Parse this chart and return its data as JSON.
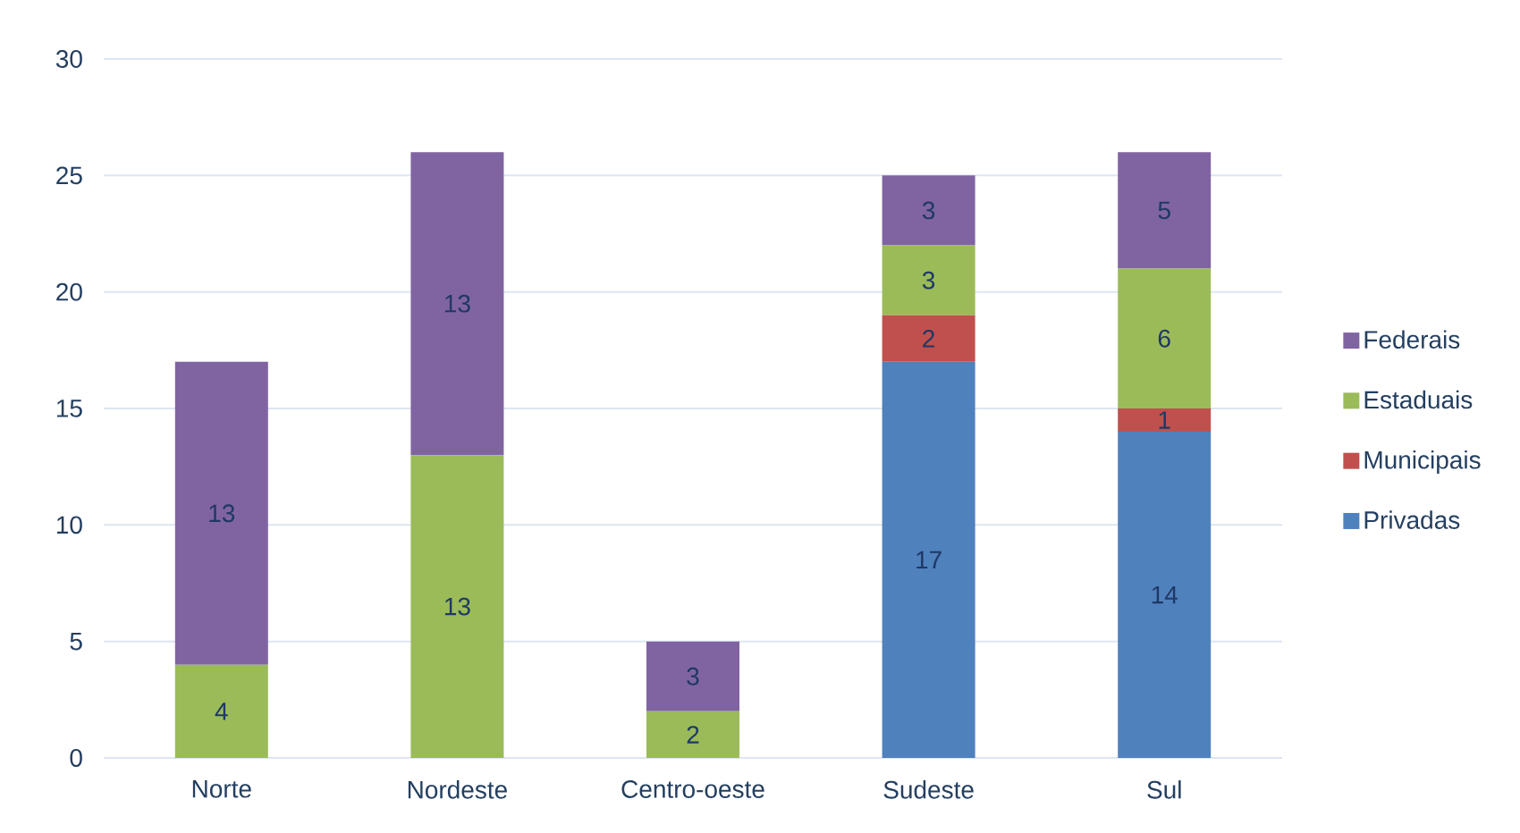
{
  "chart_data": {
    "type": "bar",
    "stacked": true,
    "categories": [
      "Norte",
      "Nordeste",
      "Centro-oeste",
      "Sudeste",
      "Sul"
    ],
    "series": [
      {
        "name": "Privadas",
        "color": "#4f81bd",
        "values": [
          0,
          0,
          0,
          17,
          14
        ],
        "value_labels": [
          null,
          null,
          null,
          "17",
          "14"
        ]
      },
      {
        "name": "Municipais",
        "color": "#c0504d",
        "values": [
          0,
          0,
          0,
          2,
          1
        ],
        "value_labels": [
          null,
          null,
          null,
          "2",
          "1"
        ]
      },
      {
        "name": "Estaduais",
        "color": "#9bbb59",
        "values": [
          4,
          13,
          2,
          3,
          6
        ],
        "value_labels": [
          "4",
          "13",
          "2",
          "3",
          "6"
        ]
      },
      {
        "name": "Federais",
        "color": "#8064a2",
        "values": [
          13,
          13,
          3,
          3,
          5
        ],
        "value_labels": [
          "13",
          "13",
          "3",
          "3",
          "5"
        ]
      }
    ],
    "ylim": [
      0,
      30
    ],
    "yticks": [
      0,
      5,
      10,
      15,
      20,
      25,
      30
    ],
    "grid": "y",
    "legend": "right"
  }
}
